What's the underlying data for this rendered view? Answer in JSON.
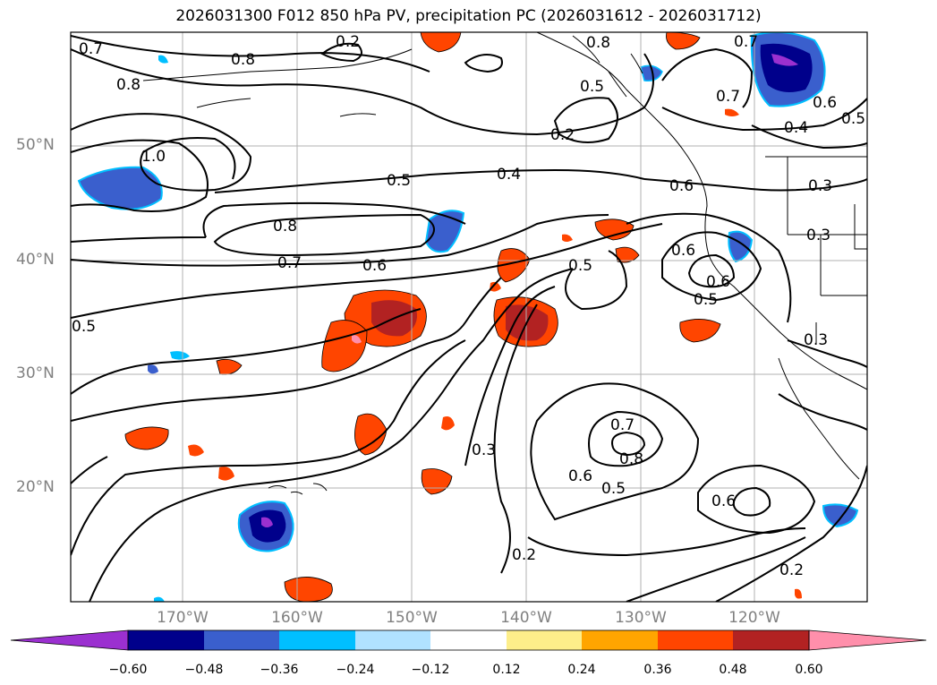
{
  "title": "2026031300 F012 850 hPa PV, precipitation PC (2026031612 - 2026031712)",
  "lat_labels": [
    "50°N",
    "40°N",
    "30°N",
    "20°N"
  ],
  "lon_labels": [
    "170°W",
    "160°W",
    "150°W",
    "140°W",
    "130°W",
    "120°W"
  ],
  "contour_labels": [
    "0.7",
    "0.8",
    "0.8",
    "1.0",
    "0.8",
    "0.7",
    "0.6",
    "0.5",
    "0.4",
    "0.5",
    "0.8",
    "0.7",
    "0.6",
    "0.5",
    "0.5",
    "0.4",
    "0.2",
    "0.3",
    "0.6",
    "0.7",
    "0.6",
    "0.5",
    "0.6",
    "0.5",
    "0.7",
    "0.8",
    "0.6",
    "0.5",
    "0.3",
    "0.2",
    "0.6",
    "0.2",
    "0.3",
    "0.3",
    "0.2"
  ],
  "colorbar": {
    "ticks": [
      "−0.60",
      "−0.48",
      "−0.36",
      "−0.24",
      "−0.12",
      "0.12",
      "0.24",
      "0.36",
      "0.48",
      "0.60"
    ],
    "colors": [
      "#9b30d0",
      "#00008b",
      "#3a5fcd",
      "#00bfff",
      "#b0e2ff",
      "#ffffff",
      "#fdee8a",
      "#ffa500",
      "#ff4500",
      "#b22222",
      "#ff8fab"
    ]
  }
}
